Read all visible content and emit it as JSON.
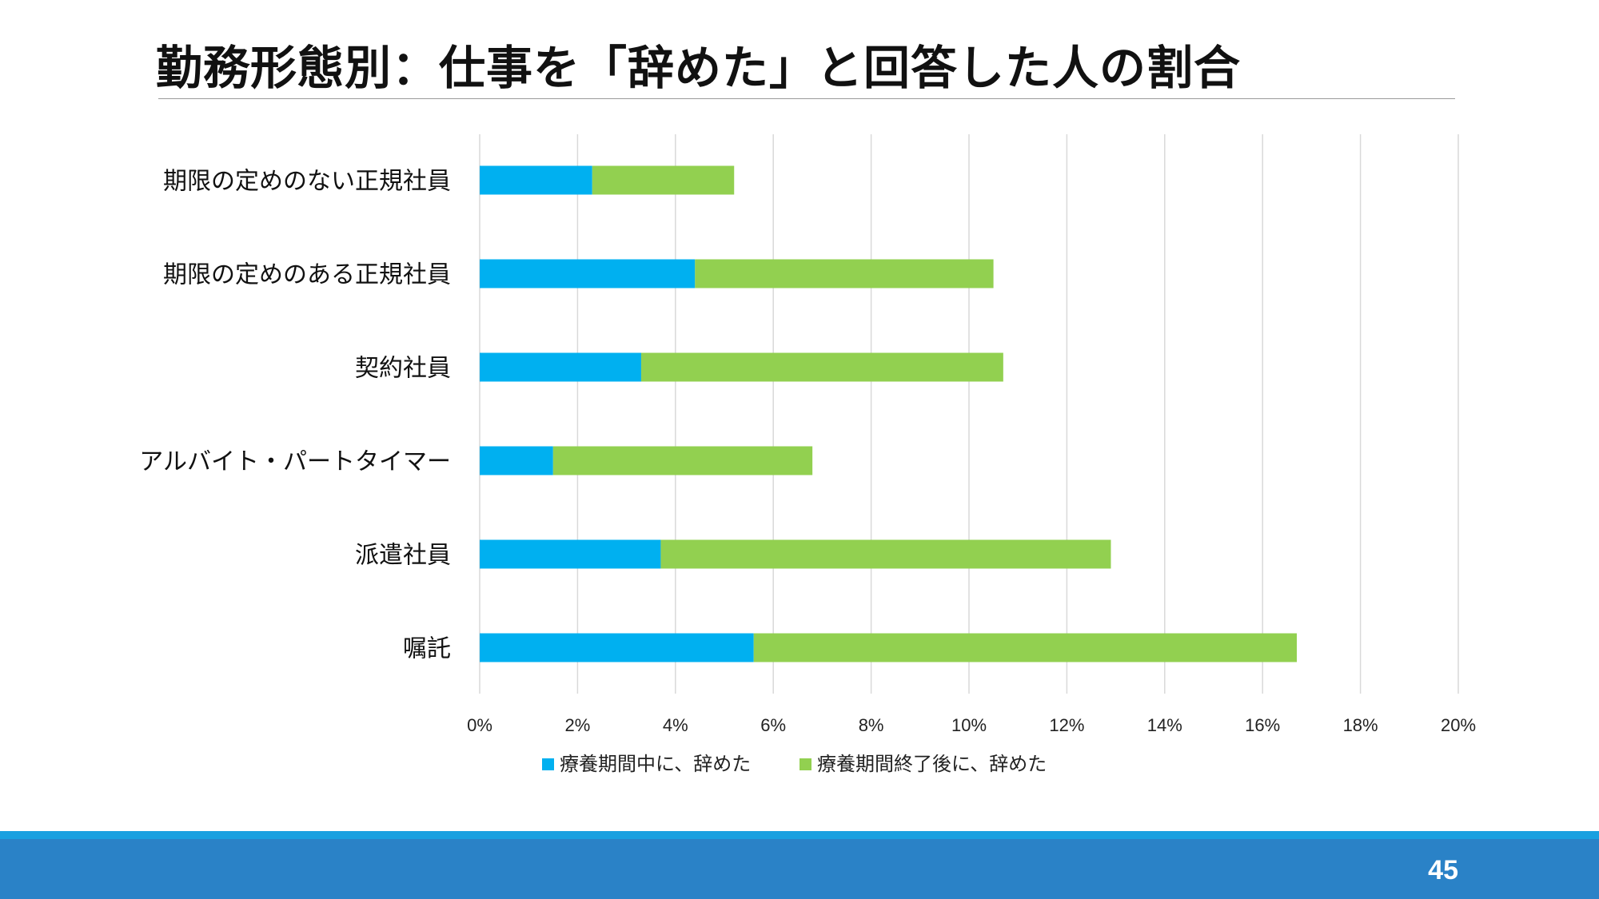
{
  "slide": {
    "title": "勤務形態別：仕事を「辞めた」と回答した人の割合",
    "page_number": "45"
  },
  "colors": {
    "series1": "#00b0f0",
    "series2": "#92d050",
    "grid": "#d9d9d9",
    "footer_main": "#2a82c7",
    "footer_accent": "#1aa0e0"
  },
  "chart_data": {
    "type": "bar",
    "orientation": "horizontal",
    "stacked": true,
    "categories": [
      "期限の定めのない正規社員",
      "期限の定めのある正規社員",
      "契約社員",
      "アルバイト・パートタイマー",
      "派遣社員",
      "嘱託"
    ],
    "series": [
      {
        "name": "療養期間中に、辞めた",
        "values": [
          2.3,
          4.4,
          3.3,
          1.5,
          3.7,
          5.6
        ]
      },
      {
        "name": "療養期間終了後に、辞めた",
        "values": [
          2.9,
          6.1,
          7.4,
          5.3,
          9.2,
          11.1
        ]
      }
    ],
    "xlim": [
      0,
      20
    ],
    "xticks": [
      "0%",
      "2%",
      "4%",
      "6%",
      "8%",
      "10%",
      "12%",
      "14%",
      "16%",
      "18%",
      "20%"
    ],
    "grid": true,
    "legend": "bottom"
  }
}
